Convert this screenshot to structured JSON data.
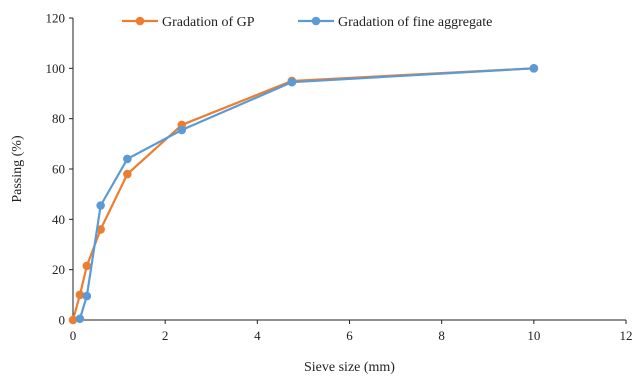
{
  "chart_data": {
    "type": "line",
    "xlabel": "Sieve size (mm)",
    "ylabel": "Passing (%)",
    "xlim": [
      0,
      12
    ],
    "ylim": [
      0,
      120
    ],
    "x_ticks": [
      0,
      2,
      4,
      6,
      8,
      10,
      12
    ],
    "y_ticks": [
      0,
      20,
      40,
      60,
      80,
      100,
      120
    ],
    "grid": false,
    "legend_position": "top",
    "series": [
      {
        "name": "Gradation of GP",
        "color": "#ED7D31",
        "points": [
          {
            "x": 0,
            "y": 0
          },
          {
            "x": 0.15,
            "y": 10
          },
          {
            "x": 0.3,
            "y": 21.5
          },
          {
            "x": 0.6,
            "y": 36
          },
          {
            "x": 1.18,
            "y": 58
          },
          {
            "x": 2.36,
            "y": 77.5
          },
          {
            "x": 4.75,
            "y": 95
          },
          {
            "x": 10,
            "y": 100
          }
        ]
      },
      {
        "name": "Gradation of fine aggregate",
        "color": "#5B9BD5",
        "points": [
          {
            "x": 0.15,
            "y": 0.5
          },
          {
            "x": 0.3,
            "y": 9.5
          },
          {
            "x": 0.6,
            "y": 45.5
          },
          {
            "x": 1.18,
            "y": 64
          },
          {
            "x": 2.36,
            "y": 75.5
          },
          {
            "x": 4.75,
            "y": 94.5
          },
          {
            "x": 10,
            "y": 100
          }
        ]
      }
    ]
  }
}
